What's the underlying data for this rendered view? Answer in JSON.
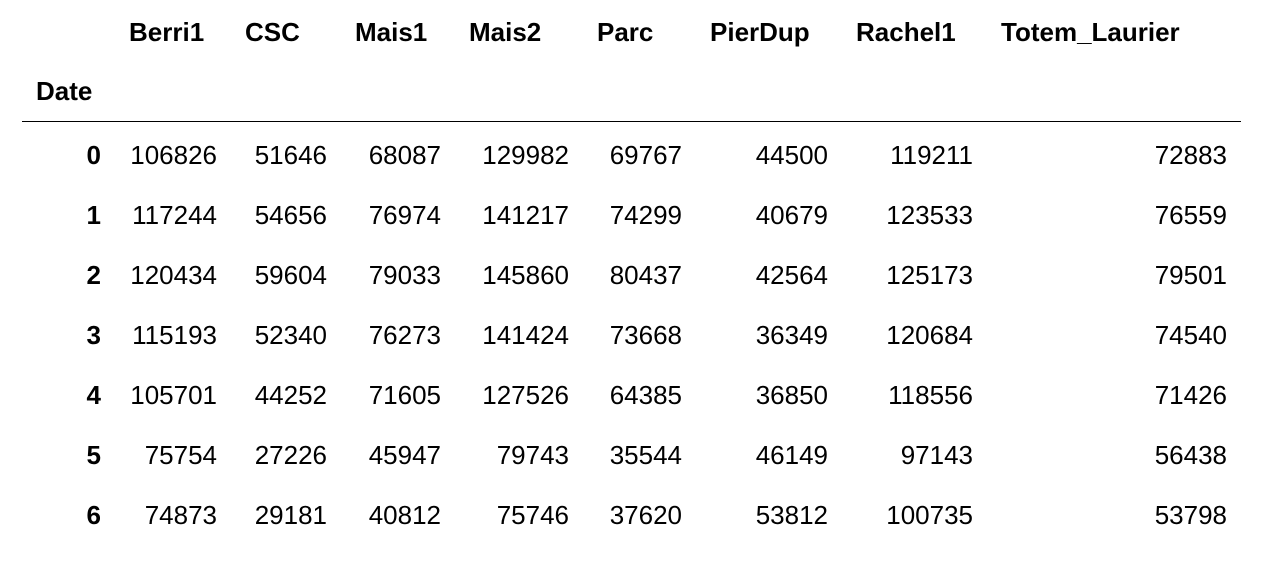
{
  "table": {
    "columns": [
      "Berri1",
      "CSC",
      "Mais1",
      "Mais2",
      "Parc",
      "PierDup",
      "Rachel1",
      "Totem_Laurier"
    ],
    "index_name": "Date",
    "rows": [
      {
        "index": "0",
        "values": [
          "106826",
          "51646",
          "68087",
          "129982",
          "69767",
          "44500",
          "119211",
          "72883"
        ]
      },
      {
        "index": "1",
        "values": [
          "117244",
          "54656",
          "76974",
          "141217",
          "74299",
          "40679",
          "123533",
          "76559"
        ]
      },
      {
        "index": "2",
        "values": [
          "120434",
          "59604",
          "79033",
          "145860",
          "80437",
          "42564",
          "125173",
          "79501"
        ]
      },
      {
        "index": "3",
        "values": [
          "115193",
          "52340",
          "76273",
          "141424",
          "73668",
          "36349",
          "120684",
          "74540"
        ]
      },
      {
        "index": "4",
        "values": [
          "105701",
          "44252",
          "71605",
          "127526",
          "64385",
          "36850",
          "118556",
          "71426"
        ]
      },
      {
        "index": "5",
        "values": [
          "75754",
          "27226",
          "45947",
          "79743",
          "35544",
          "46149",
          "97143",
          "56438"
        ]
      },
      {
        "index": "6",
        "values": [
          "74873",
          "29181",
          "40812",
          "75746",
          "37620",
          "53812",
          "100735",
          "53798"
        ]
      }
    ]
  }
}
